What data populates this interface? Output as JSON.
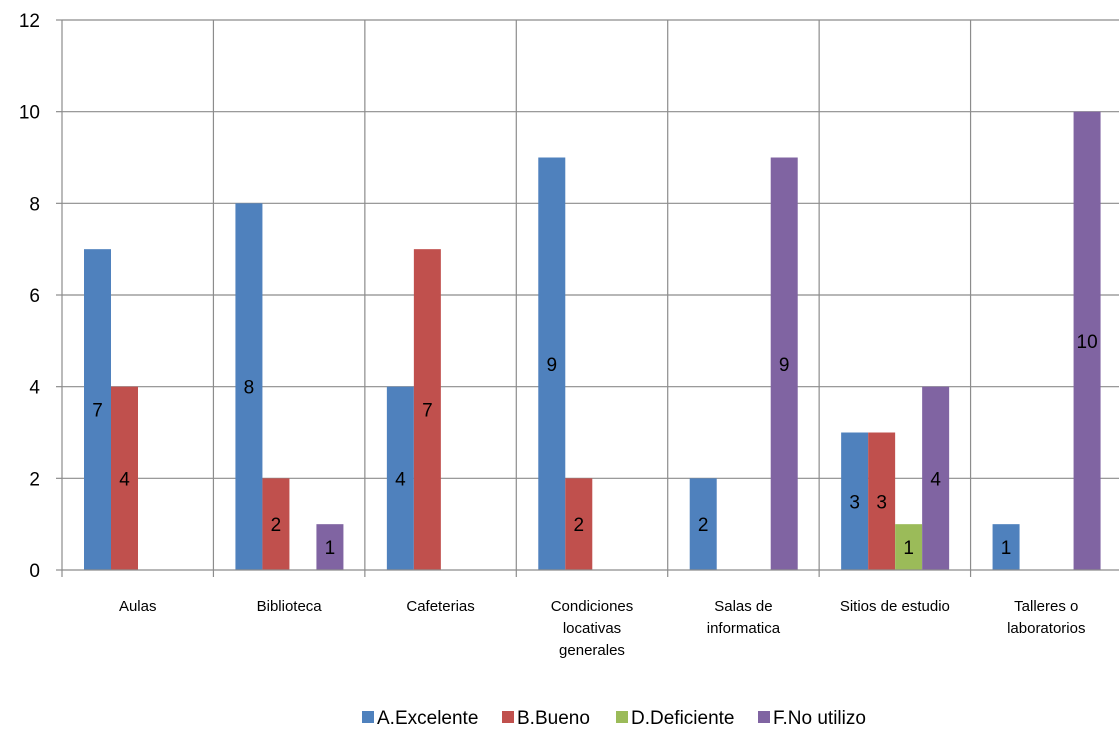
{
  "chart_data": {
    "type": "bar",
    "title": "",
    "xlabel": "",
    "ylabel": "",
    "ylim": [
      0,
      12
    ],
    "yticks": [
      0,
      2,
      4,
      6,
      8,
      10,
      12
    ],
    "grid": true,
    "legend_position": "bottom",
    "categories": [
      [
        "Aulas"
      ],
      [
        "Biblioteca"
      ],
      [
        "Cafeterias"
      ],
      [
        "Condiciones",
        "locativas",
        "generales"
      ],
      [
        "Salas de",
        "informatica"
      ],
      [
        "Sitios de estudio"
      ],
      [
        "Talleres o",
        "laboratorios"
      ]
    ],
    "series": [
      {
        "name": "A.Excelente",
        "color": "#4F81BD",
        "values": [
          7,
          8,
          4,
          9,
          2,
          3,
          1
        ]
      },
      {
        "name": "B.Bueno",
        "color": "#C0504D",
        "values": [
          4,
          2,
          7,
          2,
          null,
          3,
          null
        ]
      },
      {
        "name": "D.Deficiente",
        "color": "#9BBB59",
        "values": [
          null,
          null,
          null,
          null,
          null,
          1,
          null
        ]
      },
      {
        "name": "F.No utilizo",
        "color": "#8064A2",
        "values": [
          null,
          1,
          null,
          null,
          9,
          4,
          10
        ]
      }
    ]
  }
}
